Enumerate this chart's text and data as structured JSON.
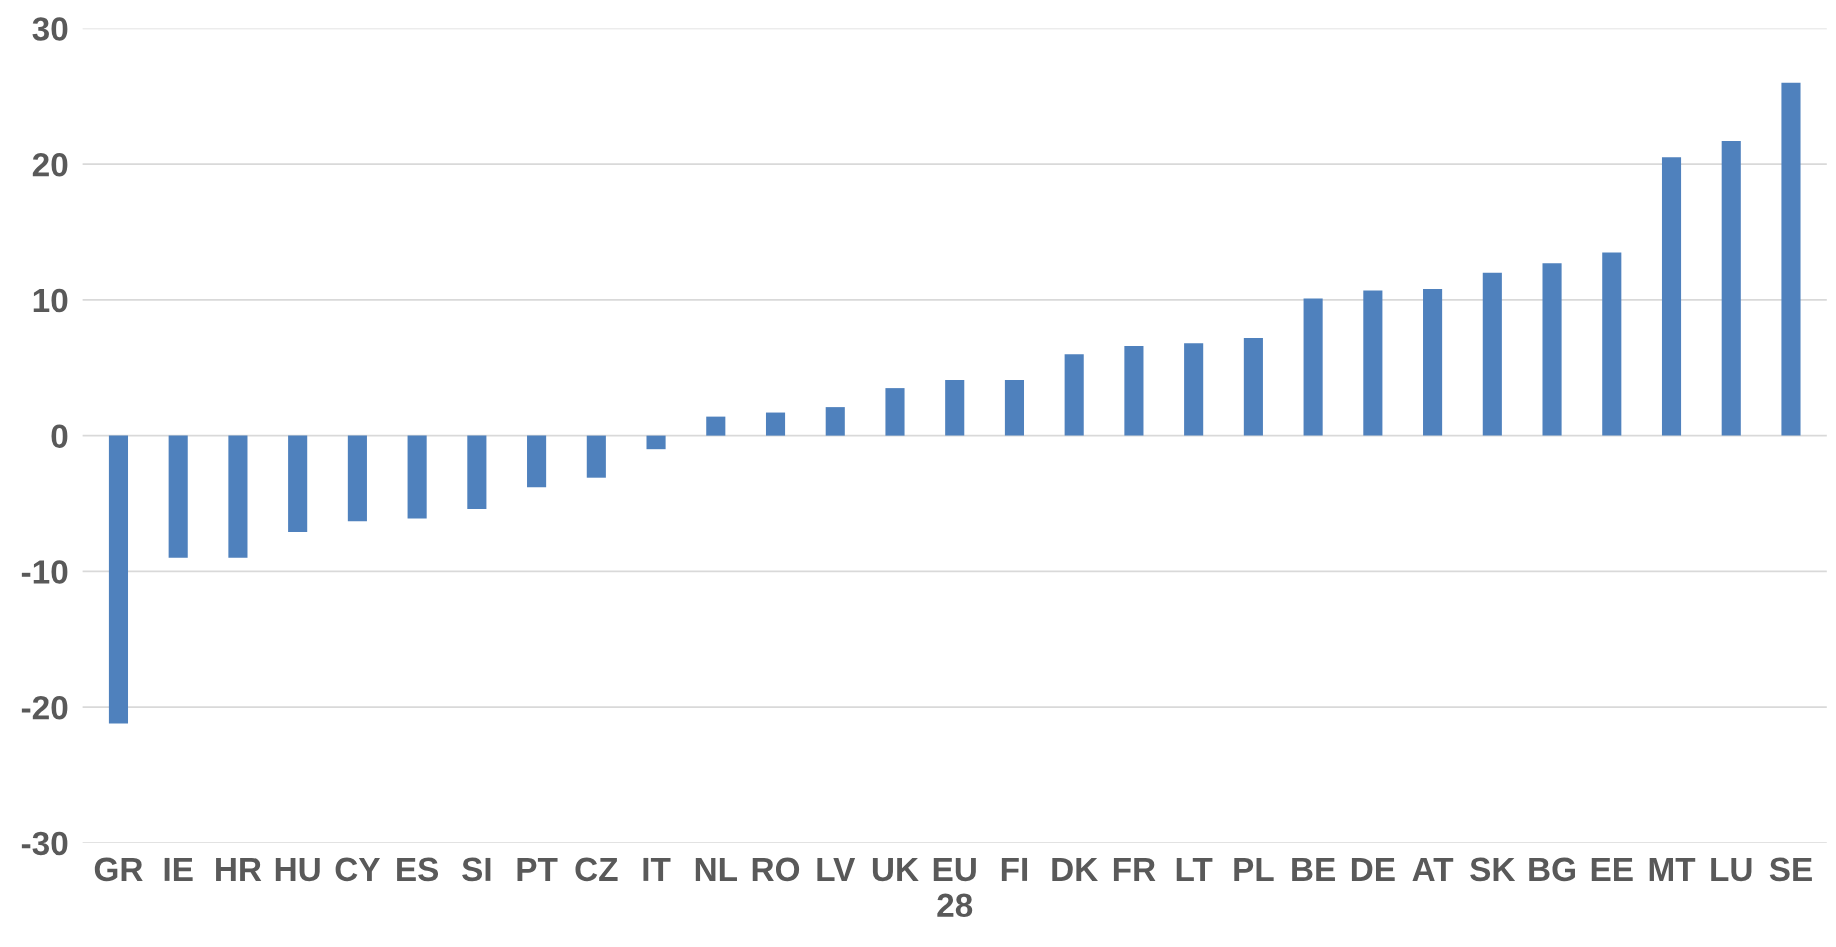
{
  "chart_data": {
    "type": "bar",
    "categories": [
      "GR",
      "IE",
      "HR",
      "HU",
      "CY",
      "ES",
      "SI",
      "PT",
      "CZ",
      "IT",
      "NL",
      "RO",
      "LV",
      "UK",
      "EU\n28",
      "FI",
      "DK",
      "FR",
      "LT",
      "PL",
      "BE",
      "DE",
      "AT",
      "SK",
      "BG",
      "EE",
      "MT",
      "LU",
      "SE"
    ],
    "values": [
      -21.2,
      -9.0,
      -9.0,
      -7.1,
      -6.3,
      -6.1,
      -5.4,
      -3.8,
      -3.1,
      -1.0,
      1.4,
      1.7,
      2.1,
      3.5,
      4.1,
      4.1,
      6.0,
      6.6,
      6.8,
      7.2,
      10.1,
      10.7,
      10.8,
      12.0,
      12.7,
      13.5,
      20.5,
      21.7,
      26.0
    ],
    "color": "#4f81bd",
    "ylim": [
      -30,
      30
    ],
    "yticks": [
      -30,
      -20,
      -10,
      0,
      10,
      20,
      30
    ],
    "grid": "y"
  }
}
